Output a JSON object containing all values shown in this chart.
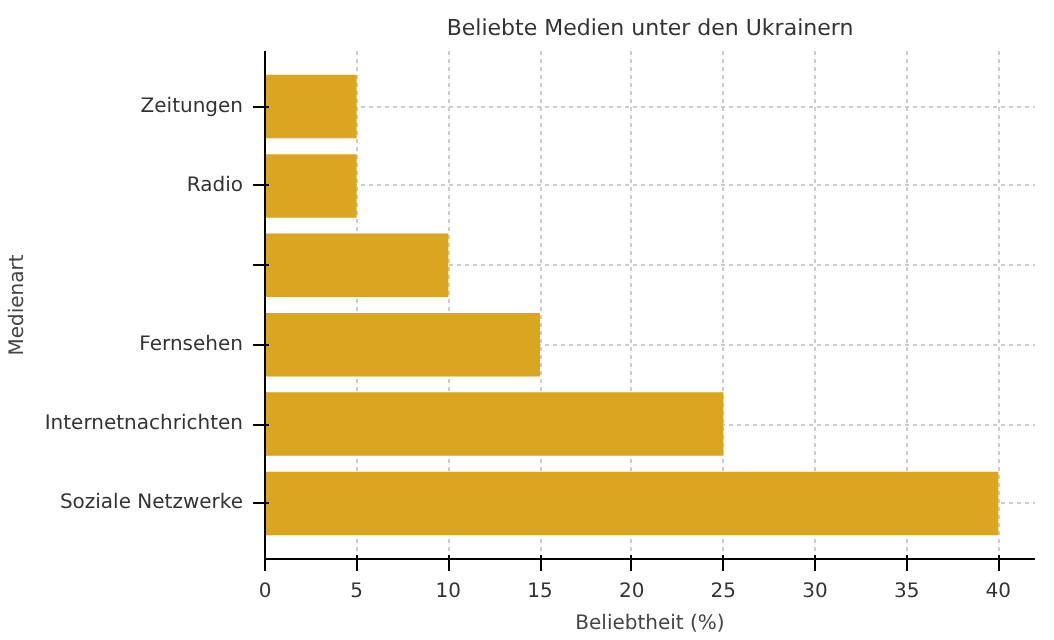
{
  "chart_data": {
    "type": "bar",
    "orientation": "horizontal",
    "title": "Beliebte Medien unter den Ukrainern",
    "xlabel": "Beliebtheit (%)",
    "ylabel": "Medienart",
    "categories": [
      "Zeitungen",
      "Radio",
      null,
      "Fernsehen",
      "Internetnachrichten",
      "Soziale Netzwerke"
    ],
    "values": [
      5,
      5,
      10,
      15,
      25,
      40
    ],
    "color": "#daa520",
    "xlim": [
      0,
      42
    ],
    "xticks": [
      0,
      5,
      10,
      15,
      20,
      25,
      30,
      35,
      40
    ],
    "grid": true
  }
}
